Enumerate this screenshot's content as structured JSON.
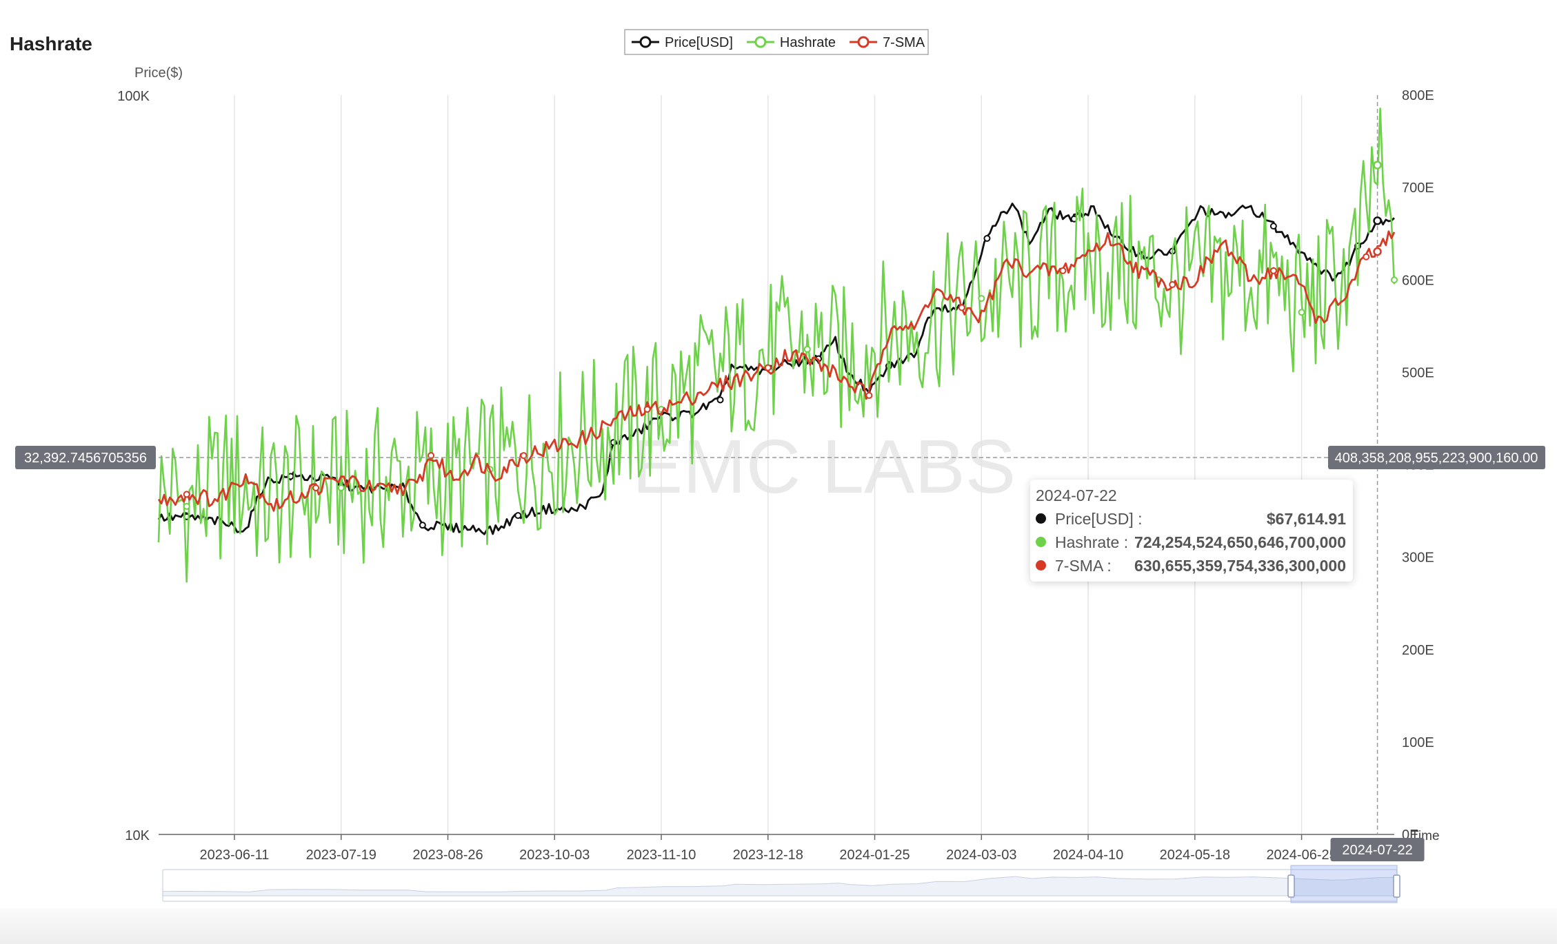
{
  "title": "Hashrate",
  "watermark": "EMC LABS",
  "legend": [
    {
      "label": "Price[USD]",
      "color": "#111111"
    },
    {
      "label": "Hashrate",
      "color": "#6dd149"
    },
    {
      "label": "7-SMA",
      "color": "#d63a25"
    }
  ],
  "axis_pointer": {
    "y_left_label": "32,392.7456705356",
    "y_right_label": "408,358,208,955,223,900,160.00",
    "x_label": "2024-07-22"
  },
  "tooltip": {
    "date": "2024-07-22",
    "rows": [
      {
        "label": "Price[USD] :",
        "value": "$67,614.91",
        "color": "#111111"
      },
      {
        "label": "Hashrate :",
        "value": "724,254,524,650,646,700,000",
        "color": "#6dd149"
      },
      {
        "label": "7-SMA :",
        "value": "630,655,359,754,336,300,000",
        "color": "#d63a25"
      }
    ]
  },
  "chart_data": {
    "type": "line",
    "title": "Hashrate",
    "ylabel": "Price($)",
    "y2label": "",
    "xlabel": "Time",
    "x_start": "2023-05-15",
    "x_end": "2024-07-28",
    "x_ticks": [
      "2023-06-11",
      "2023-07-19",
      "2023-08-26",
      "2023-10-03",
      "2023-11-10",
      "2023-12-18",
      "2024-01-25",
      "2024-03-03",
      "2024-04-10",
      "2024-05-18",
      "2024-06-25"
    ],
    "y_left": {
      "scale": "log",
      "range": [
        10000,
        100000
      ],
      "ticks": [
        "10K",
        "100K"
      ]
    },
    "y_right": {
      "scale": "linear",
      "range": [
        0,
        800
      ],
      "unit": "E",
      "ticks": [
        "0E",
        "100E",
        "200E",
        "300E",
        "400E",
        "500E",
        "600E",
        "700E",
        "800E"
      ]
    },
    "grid": "vertical",
    "legend_position": "top-center",
    "series": [
      {
        "name": "Price[USD]",
        "axis": "left",
        "color": "#111111",
        "points": [
          [
            "2023-05-15",
            26800
          ],
          [
            "2023-05-25",
            26900
          ],
          [
            "2023-06-05",
            26500
          ],
          [
            "2023-06-15",
            25800
          ],
          [
            "2023-06-22",
            30000
          ],
          [
            "2023-07-01",
            30500
          ],
          [
            "2023-07-15",
            30300
          ],
          [
            "2023-07-25",
            29300
          ],
          [
            "2023-08-10",
            29400
          ],
          [
            "2023-08-17",
            26200
          ],
          [
            "2023-08-28",
            26000
          ],
          [
            "2023-09-05",
            25900
          ],
          [
            "2023-09-12",
            25800
          ],
          [
            "2023-09-20",
            27000
          ],
          [
            "2023-10-01",
            27600
          ],
          [
            "2023-10-10",
            27400
          ],
          [
            "2023-10-20",
            28800
          ],
          [
            "2023-10-24",
            33900
          ],
          [
            "2023-11-01",
            34800
          ],
          [
            "2023-11-09",
            36700
          ],
          [
            "2023-11-20",
            37000
          ],
          [
            "2023-12-01",
            38700
          ],
          [
            "2023-12-05",
            43000
          ],
          [
            "2023-12-15",
            42200
          ],
          [
            "2023-12-25",
            43300
          ],
          [
            "2024-01-05",
            44000
          ],
          [
            "2024-01-11",
            46500
          ],
          [
            "2024-01-15",
            42500
          ],
          [
            "2024-01-23",
            39500
          ],
          [
            "2024-01-30",
            43000
          ],
          [
            "2024-02-08",
            44500
          ],
          [
            "2024-02-15",
            51800
          ],
          [
            "2024-02-25",
            51500
          ],
          [
            "2024-03-05",
            64000
          ],
          [
            "2024-03-14",
            72000
          ],
          [
            "2024-03-20",
            63000
          ],
          [
            "2024-03-27",
            69500
          ],
          [
            "2024-04-05",
            68000
          ],
          [
            "2024-04-12",
            70500
          ],
          [
            "2024-04-19",
            64000
          ],
          [
            "2024-04-30",
            60500
          ],
          [
            "2024-05-10",
            61500
          ],
          [
            "2024-05-20",
            70000
          ],
          [
            "2024-05-28",
            68500
          ],
          [
            "2024-06-07",
            70500
          ],
          [
            "2024-06-15",
            66500
          ],
          [
            "2024-06-25",
            61500
          ],
          [
            "2024-07-05",
            56700
          ],
          [
            "2024-07-10",
            57800
          ],
          [
            "2024-07-15",
            62500
          ],
          [
            "2024-07-22",
            67614.91
          ],
          [
            "2024-07-28",
            68300
          ]
        ]
      },
      {
        "name": "Hashrate",
        "axis": "right",
        "color": "#6dd149",
        "points": [
          [
            "2023-05-15",
            370
          ],
          [
            "2023-05-25",
            355
          ],
          [
            "2023-06-11",
            385
          ],
          [
            "2023-06-22",
            360
          ],
          [
            "2023-07-01",
            370
          ],
          [
            "2023-07-19",
            375
          ],
          [
            "2023-08-01",
            380
          ],
          [
            "2023-08-10",
            385
          ],
          [
            "2023-08-26",
            380
          ],
          [
            "2023-09-10",
            395
          ],
          [
            "2023-09-25",
            410
          ],
          [
            "2023-10-03",
            420
          ],
          [
            "2023-10-20",
            435
          ],
          [
            "2023-11-10",
            460
          ],
          [
            "2023-11-25",
            490
          ],
          [
            "2023-12-10",
            510
          ],
          [
            "2023-12-18",
            520
          ],
          [
            "2024-01-01",
            525
          ],
          [
            "2024-01-15",
            510
          ],
          [
            "2024-01-25",
            535
          ],
          [
            "2024-02-10",
            555
          ],
          [
            "2024-03-03",
            580
          ],
          [
            "2024-03-20",
            600
          ],
          [
            "2024-04-10",
            620
          ],
          [
            "2024-04-25",
            610
          ],
          [
            "2024-05-05",
            600
          ],
          [
            "2024-05-18",
            595
          ],
          [
            "2024-06-01",
            610
          ],
          [
            "2024-06-15",
            600
          ],
          [
            "2024-06-25",
            565
          ],
          [
            "2024-07-05",
            590
          ],
          [
            "2024-07-15",
            620
          ],
          [
            "2024-07-22",
            724.25
          ],
          [
            "2024-07-28",
            600
          ]
        ]
      },
      {
        "name": "7-SMA",
        "axis": "right",
        "color": "#d63a25",
        "points": [
          [
            "2023-05-15",
            360
          ],
          [
            "2023-05-25",
            368
          ],
          [
            "2023-06-05",
            362
          ],
          [
            "2023-06-15",
            390
          ],
          [
            "2023-06-25",
            355
          ],
          [
            "2023-07-10",
            375
          ],
          [
            "2023-07-19",
            385
          ],
          [
            "2023-08-01",
            372
          ],
          [
            "2023-08-15",
            378
          ],
          [
            "2023-08-20",
            410
          ],
          [
            "2023-08-28",
            385
          ],
          [
            "2023-09-05",
            405
          ],
          [
            "2023-09-12",
            390
          ],
          [
            "2023-09-22",
            410
          ],
          [
            "2023-10-03",
            420
          ],
          [
            "2023-10-15",
            430
          ],
          [
            "2023-10-25",
            450
          ],
          [
            "2023-11-05",
            460
          ],
          [
            "2023-11-15",
            465
          ],
          [
            "2023-11-25",
            480
          ],
          [
            "2023-12-05",
            490
          ],
          [
            "2023-12-18",
            505
          ],
          [
            "2023-12-25",
            520
          ],
          [
            "2024-01-05",
            510
          ],
          [
            "2024-01-15",
            490
          ],
          [
            "2024-01-23",
            475
          ],
          [
            "2024-01-31",
            555
          ],
          [
            "2024-02-08",
            545
          ],
          [
            "2024-02-15",
            590
          ],
          [
            "2024-02-25",
            570
          ],
          [
            "2024-03-03",
            560
          ],
          [
            "2024-03-12",
            620
          ],
          [
            "2024-03-20",
            610
          ],
          [
            "2024-04-01",
            610
          ],
          [
            "2024-04-10",
            630
          ],
          [
            "2024-04-18",
            645
          ],
          [
            "2024-04-28",
            610
          ],
          [
            "2024-05-10",
            595
          ],
          [
            "2024-05-18",
            600
          ],
          [
            "2024-05-28",
            640
          ],
          [
            "2024-06-07",
            600
          ],
          [
            "2024-06-15",
            610
          ],
          [
            "2024-06-25",
            595
          ],
          [
            "2024-07-01",
            555
          ],
          [
            "2024-07-10",
            580
          ],
          [
            "2024-07-18",
            625
          ],
          [
            "2024-07-22",
            630.66
          ],
          [
            "2024-07-28",
            650
          ]
        ]
      }
    ]
  }
}
